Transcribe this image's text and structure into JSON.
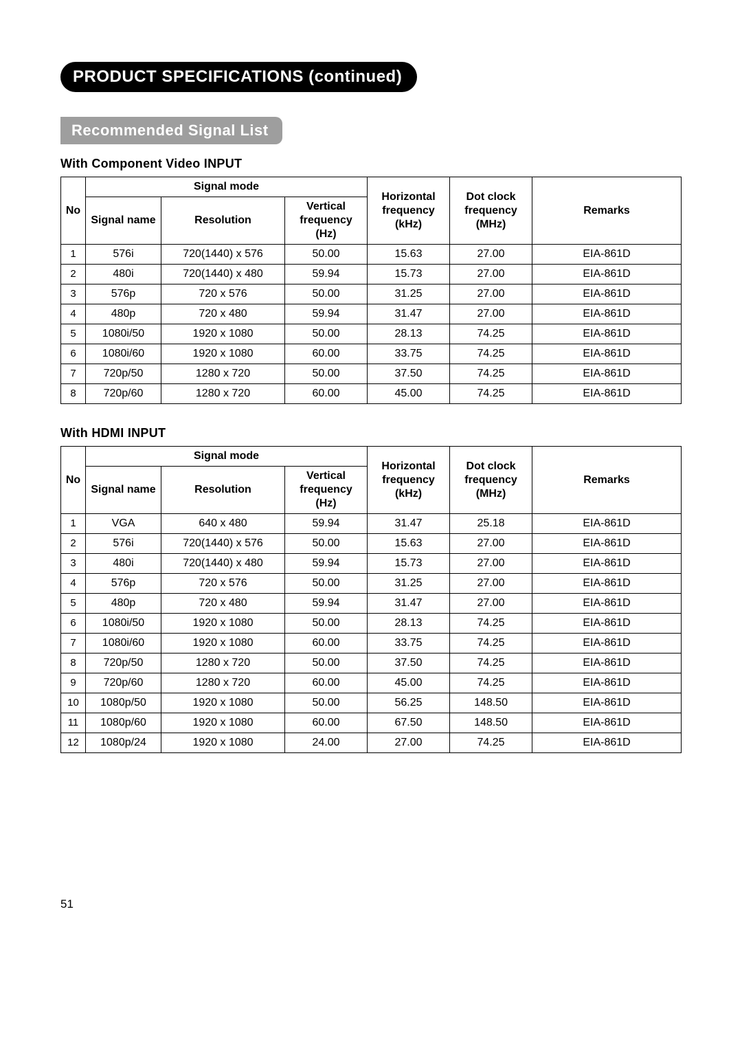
{
  "page": {
    "main_title": "PRODUCT SPECIFICATIONS (continued)",
    "sub_title": "Recommended Signal List",
    "page_number": "51"
  },
  "headers": {
    "no": "No",
    "signal_mode": "Signal mode",
    "signal_name": "Signal name",
    "resolution": "Resolution",
    "vfreq": "Vertical frequency (Hz)",
    "hfreq": "Horizontal frequency (kHz)",
    "dfreq": "Dot clock frequency (MHz)",
    "remarks": "Remarks"
  },
  "table1": {
    "caption": "With Component Video INPUT",
    "rows": [
      {
        "no": "1",
        "name": "576i",
        "res": "720(1440) x 576",
        "vf": "50.00",
        "hf": "15.63",
        "df": "27.00",
        "rem": "EIA-861D"
      },
      {
        "no": "2",
        "name": "480i",
        "res": "720(1440) x 480",
        "vf": "59.94",
        "hf": "15.73",
        "df": "27.00",
        "rem": "EIA-861D"
      },
      {
        "no": "3",
        "name": "576p",
        "res": "720 x 576",
        "vf": "50.00",
        "hf": "31.25",
        "df": "27.00",
        "rem": "EIA-861D"
      },
      {
        "no": "4",
        "name": "480p",
        "res": "720 x 480",
        "vf": "59.94",
        "hf": "31.47",
        "df": "27.00",
        "rem": "EIA-861D"
      },
      {
        "no": "5",
        "name": "1080i/50",
        "res": "1920 x 1080",
        "vf": "50.00",
        "hf": "28.13",
        "df": "74.25",
        "rem": "EIA-861D"
      },
      {
        "no": "6",
        "name": "1080i/60",
        "res": "1920 x 1080",
        "vf": "60.00",
        "hf": "33.75",
        "df": "74.25",
        "rem": "EIA-861D"
      },
      {
        "no": "7",
        "name": "720p/50",
        "res": "1280 x 720",
        "vf": "50.00",
        "hf": "37.50",
        "df": "74.25",
        "rem": "EIA-861D"
      },
      {
        "no": "8",
        "name": "720p/60",
        "res": "1280 x 720",
        "vf": "60.00",
        "hf": "45.00",
        "df": "74.25",
        "rem": "EIA-861D"
      }
    ]
  },
  "table2": {
    "caption": "With HDMI INPUT",
    "rows": [
      {
        "no": "1",
        "name": "VGA",
        "res": "640 x 480",
        "vf": "59.94",
        "hf": "31.47",
        "df": "25.18",
        "rem": "EIA-861D"
      },
      {
        "no": "2",
        "name": "576i",
        "res": "720(1440) x 576",
        "vf": "50.00",
        "hf": "15.63",
        "df": "27.00",
        "rem": "EIA-861D"
      },
      {
        "no": "3",
        "name": "480i",
        "res": "720(1440) x 480",
        "vf": "59.94",
        "hf": "15.73",
        "df": "27.00",
        "rem": "EIA-861D"
      },
      {
        "no": "4",
        "name": "576p",
        "res": "720 x 576",
        "vf": "50.00",
        "hf": "31.25",
        "df": "27.00",
        "rem": "EIA-861D"
      },
      {
        "no": "5",
        "name": "480p",
        "res": "720 x 480",
        "vf": "59.94",
        "hf": "31.47",
        "df": "27.00",
        "rem": "EIA-861D"
      },
      {
        "no": "6",
        "name": "1080i/50",
        "res": "1920 x 1080",
        "vf": "50.00",
        "hf": "28.13",
        "df": "74.25",
        "rem": "EIA-861D"
      },
      {
        "no": "7",
        "name": "1080i/60",
        "res": "1920 x 1080",
        "vf": "60.00",
        "hf": "33.75",
        "df": "74.25",
        "rem": "EIA-861D"
      },
      {
        "no": "8",
        "name": "720p/50",
        "res": "1280 x 720",
        "vf": "50.00",
        "hf": "37.50",
        "df": "74.25",
        "rem": "EIA-861D"
      },
      {
        "no": "9",
        "name": "720p/60",
        "res": "1280 x 720",
        "vf": "60.00",
        "hf": "45.00",
        "df": "74.25",
        "rem": "EIA-861D"
      },
      {
        "no": "10",
        "name": "1080p/50",
        "res": "1920 x 1080",
        "vf": "50.00",
        "hf": "56.25",
        "df": "148.50",
        "rem": "EIA-861D"
      },
      {
        "no": "11",
        "name": "1080p/60",
        "res": "1920 x 1080",
        "vf": "60.00",
        "hf": "67.50",
        "df": "148.50",
        "rem": "EIA-861D"
      },
      {
        "no": "12",
        "name": "1080p/24",
        "res": "1920 x 1080",
        "vf": "24.00",
        "hf": "27.00",
        "df": "74.25",
        "rem": "EIA-861D"
      }
    ]
  },
  "styles": {
    "pill_main_bg": "#000000",
    "pill_main_fg": "#ffffff",
    "pill_sub_bg": "#9e9e9e",
    "pill_sub_fg": "#ffffff",
    "border_color": "#000000",
    "body_font_size": 16,
    "header_font_size": 16,
    "title_font_size": 24,
    "subtitle_font_size": 22
  }
}
